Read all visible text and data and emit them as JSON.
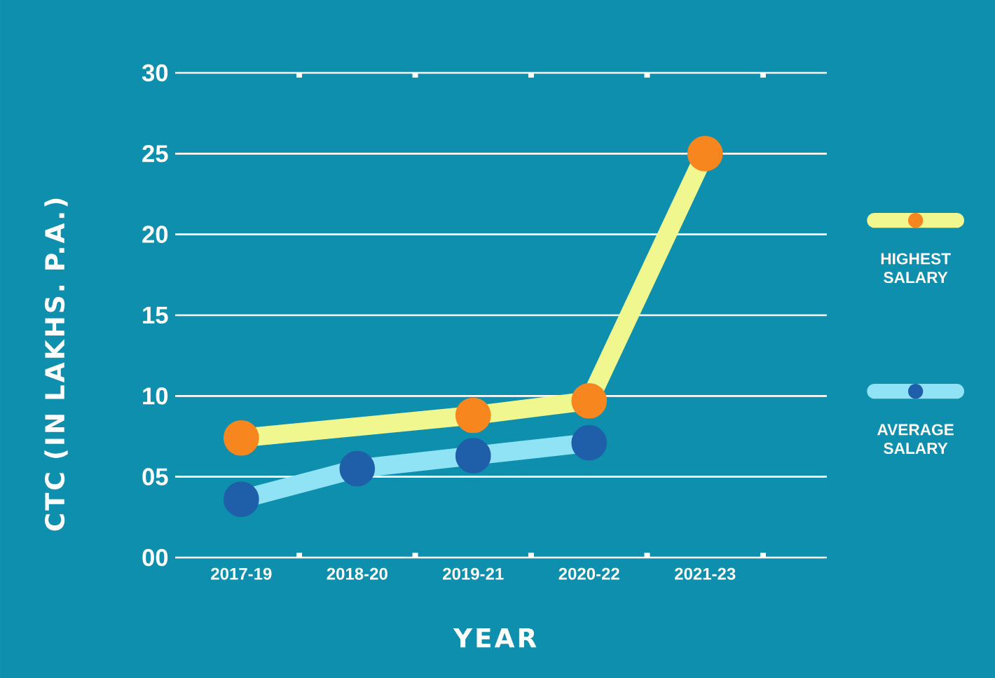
{
  "chart_data": {
    "type": "line",
    "xlabel": "YEAR",
    "ylabel": "CTC (IN LAKHS. P.A.)",
    "categories": [
      "2017-19",
      "2018-20",
      "2019-21",
      "2020-22",
      "2021-23"
    ],
    "series": [
      {
        "name": "HIGHEST SALARY",
        "color": "#f0f78f",
        "values": [
          7.4,
          null,
          8.8,
          9.7,
          25.0
        ]
      },
      {
        "name": "AVERAGE SALARY",
        "color": "#8fe3f5",
        "values": [
          3.6,
          5.5,
          6.3,
          7.1,
          null
        ]
      }
    ],
    "ylim": [
      0,
      30
    ],
    "yticks": [
      {
        "value": 0,
        "label": "00"
      },
      {
        "value": 5,
        "label": "05"
      },
      10,
      15,
      20,
      25,
      30
    ],
    "grid": "y",
    "legend": "right",
    "marker": "circle",
    "line_style": "solid"
  }
}
